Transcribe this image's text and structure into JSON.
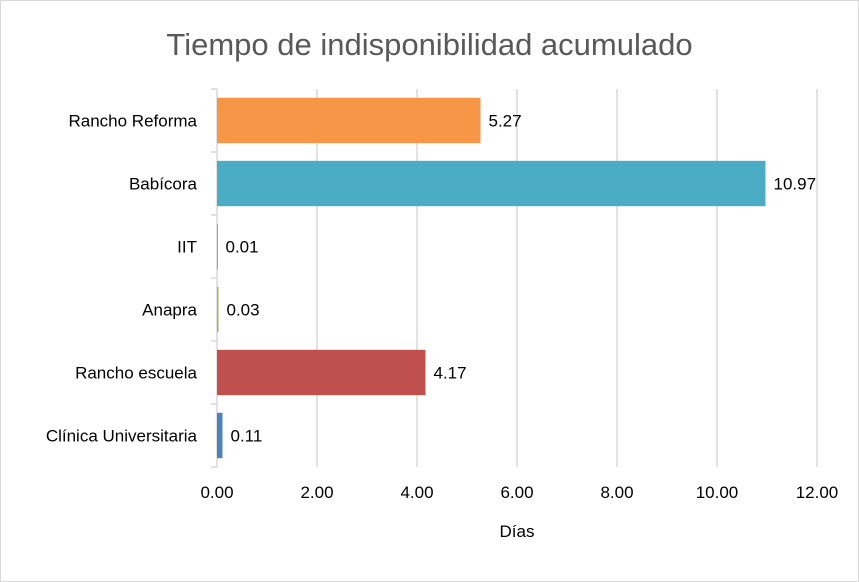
{
  "chart_data": {
    "type": "bar",
    "orientation": "horizontal",
    "title": "Tiempo de indisponibilidad acumulado",
    "xlabel": "Días",
    "ylabel": "",
    "categories": [
      "Rancho Reforma",
      "Babícora",
      "IIT",
      "Anapra",
      "Rancho escuela",
      "Clínica Universitaria"
    ],
    "values": [
      5.27,
      10.97,
      0.01,
      0.03,
      4.17,
      0.11
    ],
    "value_labels": [
      "5.27",
      "10.97",
      "0.01",
      "0.03",
      "4.17",
      "0.11"
    ],
    "colors": [
      "#f79646",
      "#4bacc6",
      "#8064a2",
      "#9bbb59",
      "#c0504d",
      "#4f81bd"
    ],
    "xlim": [
      0,
      12
    ],
    "xticks": [
      "0.00",
      "2.00",
      "4.00",
      "6.00",
      "8.00",
      "10.00",
      "12.00"
    ],
    "grid": true,
    "legend": "none"
  }
}
